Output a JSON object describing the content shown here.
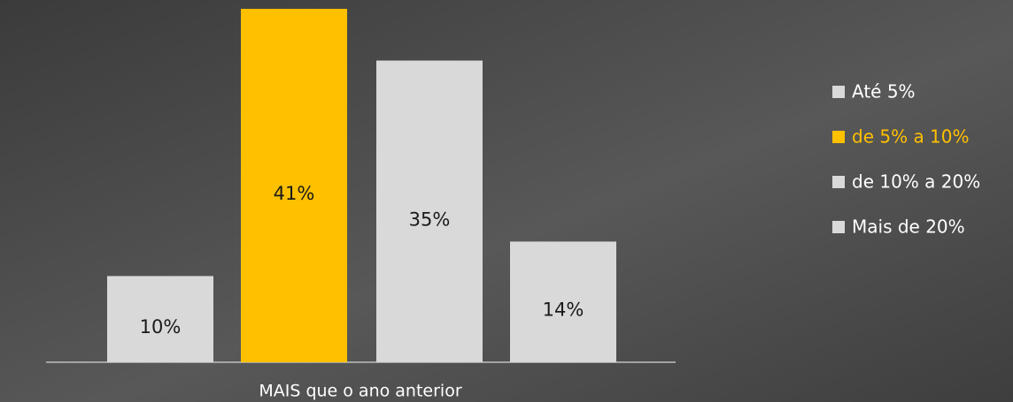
{
  "chart_data": {
    "type": "bar",
    "categories": [
      "MAIS que o ano anterior"
    ],
    "ylim": [
      0,
      41
    ],
    "legend": "right",
    "series": [
      {
        "name": "Até 5%",
        "color": "#d9d9d9",
        "text_color": "#ffffff",
        "values": [
          10
        ],
        "value_labels": [
          "10%"
        ]
      },
      {
        "name": "de 5% a 10%",
        "color": "#ffc000",
        "text_color": "#ffc000",
        "values": [
          41
        ],
        "value_labels": [
          "41%"
        ]
      },
      {
        "name": "de 10% a 20%",
        "color": "#d9d9d9",
        "text_color": "#ffffff",
        "values": [
          35
        ],
        "value_labels": [
          "35%"
        ]
      },
      {
        "name": "Mais de 20%",
        "color": "#d9d9d9",
        "text_color": "#ffffff",
        "values": [
          14
        ],
        "value_labels": [
          "14%"
        ]
      }
    ]
  }
}
